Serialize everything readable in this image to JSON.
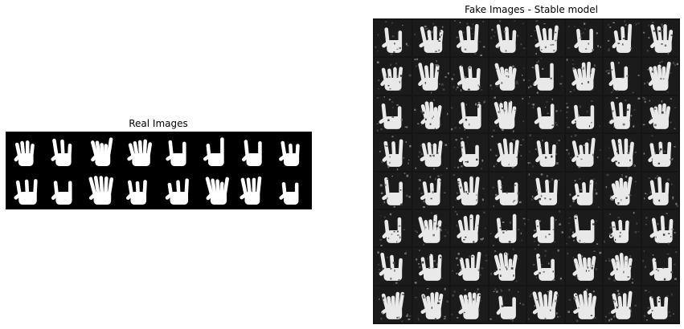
{
  "real": {
    "title": "Real Images",
    "rows": 2,
    "cols": 8,
    "hand_color": "#ffffff",
    "background": "#000000"
  },
  "fake": {
    "title": "Fake Images - Stable model",
    "rows": 8,
    "cols": 8,
    "hand_color": "#e9e9e9",
    "background": "#1b1b1b"
  }
}
